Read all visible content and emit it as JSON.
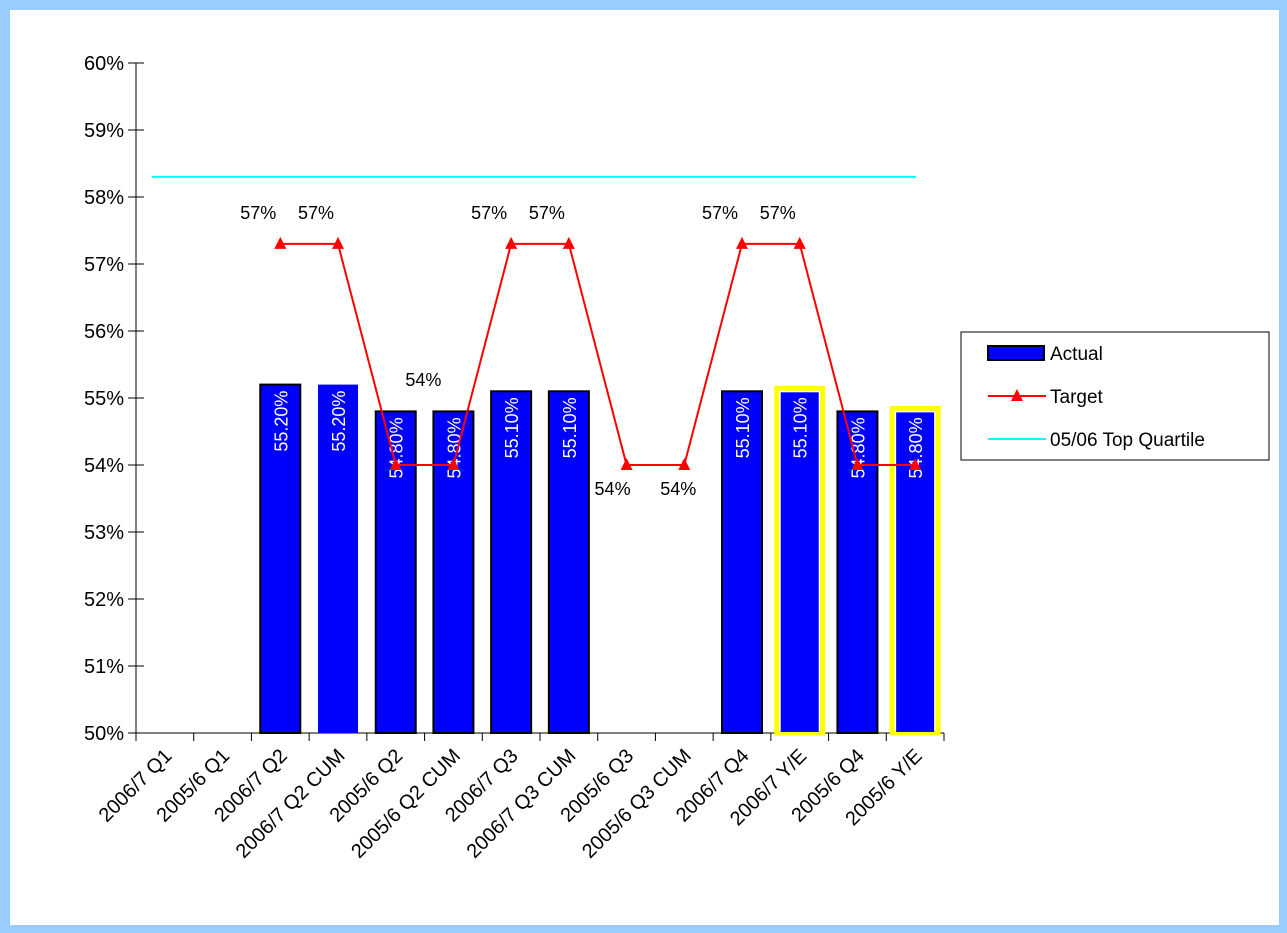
{
  "chart_data": {
    "type": "bar",
    "title": "",
    "xlabel": "",
    "ylabel": "",
    "ylim": [
      50,
      60
    ],
    "y_tick_labels": [
      "50%",
      "51%",
      "52%",
      "53%",
      "54%",
      "55%",
      "56%",
      "57%",
      "58%",
      "59%",
      "60%"
    ],
    "categories": [
      "2006/7 Q1",
      "2005/6 Q1",
      "2006/7 Q2",
      "2006/7 Q2 CUM",
      "2005/6 Q2",
      "2005/6 Q2 CUM",
      "2006/7 Q3",
      "2006/7 Q3 CUM",
      "2005/6 Q3",
      "2005/6 Q3 CUM",
      "2006/7 Q4",
      "2006/7 Y/E",
      "2005/6 Q4",
      "2005/6 Y/E"
    ],
    "series": [
      {
        "name": "Actual",
        "type": "bar",
        "values": [
          null,
          null,
          55.2,
          55.2,
          54.8,
          54.8,
          55.1,
          55.1,
          null,
          null,
          55.1,
          55.1,
          54.8,
          54.8
        ],
        "labels": [
          null,
          null,
          "55.20%",
          "55.20%",
          "54.80%",
          "54.80%",
          "55.10%",
          "55.10%",
          null,
          null,
          "55.10%",
          "55.10%",
          "54.80%",
          "54.80%"
        ],
        "highlighted": [
          false,
          false,
          false,
          false,
          false,
          false,
          false,
          false,
          false,
          false,
          false,
          true,
          false,
          true
        ],
        "color": "#0000ff"
      },
      {
        "name": "Target",
        "type": "line",
        "values": [
          null,
          null,
          57.3,
          57.3,
          54.0,
          54.0,
          57.3,
          57.3,
          54.0,
          54.0,
          57.3,
          57.3,
          54.0,
          54.0
        ],
        "labels": [
          null,
          null,
          "57%",
          "57%",
          null,
          "54%",
          "57%",
          "57%",
          "54%",
          "54%",
          "57%",
          "57%",
          null,
          null
        ],
        "color": "#ff0000"
      },
      {
        "name": "05/06 Top Quartile",
        "type": "line",
        "value": 58.3,
        "color": "#00ffff"
      }
    ],
    "highlight_color": "#ffff00",
    "legend_position": "right",
    "grid": false
  }
}
